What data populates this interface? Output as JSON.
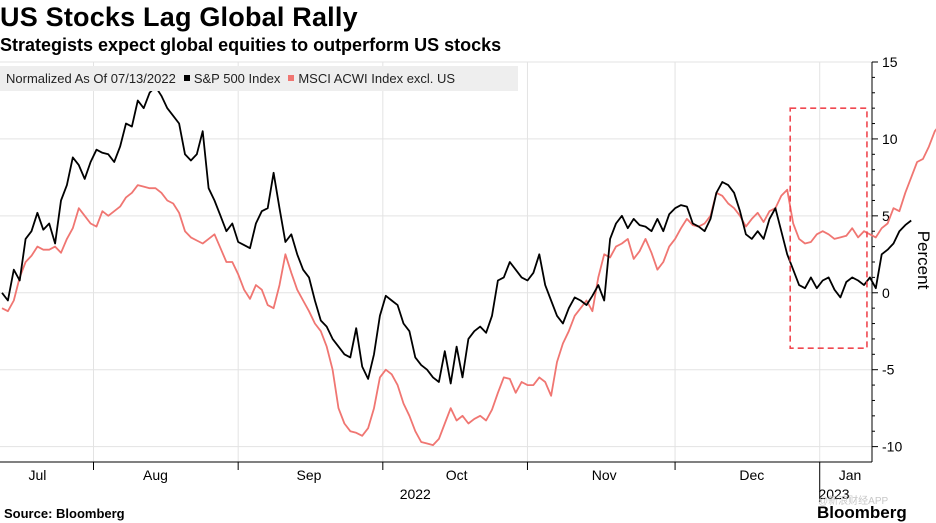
{
  "chart_data": {
    "type": "line",
    "title": "US Stocks Lag Global Rally",
    "subtitle": "Strategists expect global equities to outperform US stocks",
    "normalization_note": "Normalized As Of 07/13/2022",
    "ylabel": "Percent",
    "ylim": [
      -11,
      15
    ],
    "yticks": [
      -10,
      -5,
      0,
      5,
      10,
      15
    ],
    "ytick_labels": [
      "-10",
      "-5",
      "0",
      "5",
      "10",
      "15"
    ],
    "xlim": [
      0,
      146
    ],
    "month_ticks": [
      {
        "label": "Jul",
        "x": 6
      },
      {
        "label": "Aug",
        "x": 26
      },
      {
        "label": "Sep",
        "x": 52
      },
      {
        "label": "Oct",
        "x": 77
      },
      {
        "label": "Nov",
        "x": 102
      },
      {
        "label": "Dec",
        "x": 127
      },
      {
        "label": "Jan",
        "x": 150
      }
    ],
    "month_boundaries": [
      15.5,
      40,
      64.5,
      89,
      114,
      138.5
    ],
    "year_labels": [
      {
        "label": "2022",
        "x": 70
      },
      {
        "label": "2023",
        "x": 147
      }
    ],
    "series": [
      {
        "name": "S&P 500 Index",
        "color": "#000000",
        "values": [
          0,
          -0.5,
          1.5,
          0.8,
          3.5,
          4.0,
          5.2,
          4.1,
          4.5,
          3.2,
          6.0,
          7.0,
          8.8,
          8.3,
          7.4,
          8.5,
          9.3,
          9.1,
          9.0,
          8.5,
          9.5,
          11.0,
          10.8,
          12.5,
          12.0,
          13.0,
          13.4,
          12.8,
          12.0,
          11.5,
          11.0,
          9.0,
          8.6,
          9.0,
          10.5,
          6.8,
          6.0,
          5.0,
          4.0,
          4.5,
          3.3,
          3.1,
          2.9,
          4.5,
          5.3,
          5.5,
          7.8,
          5.5,
          3.3,
          3.8,
          2.5,
          1.5,
          1.0,
          -0.5,
          -1.8,
          -2.2,
          -3.0,
          -3.5,
          -4.0,
          -4.2,
          -2.3,
          -4.8,
          -5.6,
          -4.0,
          -1.5,
          -0.2,
          -0.5,
          -0.8,
          -2.0,
          -2.5,
          -4.2,
          -4.7,
          -5.0,
          -5.5,
          -5.8,
          -3.8,
          -5.9,
          -3.5,
          -5.5,
          -3.0,
          -2.5,
          -2.2,
          -2.6,
          -1.5,
          0.8,
          1.0,
          2.0,
          1.5,
          1.0,
          0.8,
          1.3,
          2.5,
          0.5,
          -0.5,
          -1.5,
          -2.0,
          -1.0,
          -0.3,
          -0.5,
          -0.8,
          -0.2,
          0.5,
          -0.5,
          3.5,
          4.5,
          5.0,
          4.2,
          4.8,
          4.4,
          4.3,
          4.0,
          4.8,
          4.0,
          5.1,
          5.5,
          5.7,
          5.6,
          4.5,
          4.3,
          4.0,
          4.8,
          6.5,
          7.2,
          7.0,
          6.5,
          5.3,
          3.8,
          3.5,
          4.0,
          3.5,
          4.8,
          5.5,
          4.0,
          2.5,
          1.5,
          0.5,
          0.3,
          1.0,
          0.3,
          0.8,
          1.0,
          0.2,
          -0.3,
          0.7,
          1.0,
          0.8,
          0.5,
          1.0,
          0.3,
          2.5,
          2.8,
          3.2,
          4.0,
          4.4,
          4.7
        ]
      },
      {
        "name": "MSCI ACWI Index excl. US",
        "color": "#f07672",
        "values": [
          -1.0,
          -1.2,
          -0.5,
          1.0,
          2.0,
          2.4,
          3.0,
          2.8,
          2.8,
          3.0,
          2.6,
          3.5,
          4.2,
          5.5,
          5.0,
          4.5,
          4.3,
          5.3,
          5.0,
          5.3,
          5.6,
          6.2,
          6.5,
          7.0,
          6.9,
          6.8,
          6.8,
          6.5,
          6.0,
          5.8,
          5.2,
          4.0,
          3.6,
          3.4,
          3.2,
          3.5,
          3.8,
          2.9,
          2.0,
          2.0,
          1.2,
          0.2,
          -0.4,
          0.5,
          0.2,
          -0.8,
          -1.0,
          0.5,
          2.5,
          1.3,
          0.2,
          -0.5,
          -1.2,
          -2.0,
          -2.5,
          -3.5,
          -5.0,
          -7.5,
          -8.5,
          -9.0,
          -9.1,
          -9.3,
          -8.8,
          -7.5,
          -5.5,
          -5.0,
          -5.3,
          -6.0,
          -7.2,
          -8.0,
          -9.0,
          -9.7,
          -9.8,
          -9.9,
          -9.5,
          -8.5,
          -7.5,
          -8.3,
          -8.0,
          -8.5,
          -8.2,
          -8.0,
          -8.3,
          -7.6,
          -6.5,
          -5.5,
          -5.6,
          -6.5,
          -5.8,
          -6.0,
          -6.0,
          -5.5,
          -5.8,
          -6.7,
          -4.5,
          -3.3,
          -2.5,
          -1.5,
          -1.0,
          -0.5,
          -1.2,
          1.0,
          2.5,
          2.3,
          3.0,
          3.2,
          3.5,
          2.2,
          2.7,
          3.5,
          2.6,
          1.5,
          2.0,
          3.0,
          3.5,
          4.2,
          4.8,
          4.4,
          4.3,
          4.5,
          5.0,
          6.5,
          6.3,
          5.8,
          5.5,
          5.0,
          4.3,
          4.8,
          5.2,
          4.6,
          5.3,
          5.5,
          6.3,
          6.7,
          4.5,
          3.5,
          3.2,
          3.3,
          3.8,
          4.0,
          3.8,
          3.5,
          3.6,
          3.7,
          4.2,
          3.6,
          4.0,
          3.8,
          3.6,
          4.2,
          4.5,
          5.5,
          5.3,
          6.5,
          7.5,
          8.5,
          8.7,
          9.5,
          10.5,
          11.0
        ]
      }
    ],
    "annotation": {
      "type": "dashed-box",
      "x_range": [
        133.5,
        146.5
      ],
      "y_range": [
        -3.6,
        12.0
      ],
      "color": "#f04850"
    }
  },
  "source_text": "Source: Bloomberg",
  "brand_text": "Bloomberg",
  "watermark_text": "@新浪财经APP"
}
